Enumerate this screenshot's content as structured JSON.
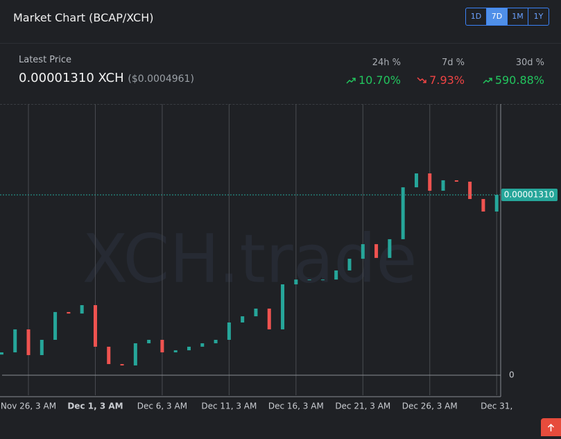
{
  "header": {
    "title": "Market Chart (BCAP/XCH)",
    "ranges": [
      "1D",
      "7D",
      "1M",
      "1Y"
    ],
    "active_range": "7D"
  },
  "price": {
    "label": "Latest Price",
    "value": "0.00001310 XCH",
    "usd": "($0.0004961)"
  },
  "changes": [
    {
      "label": "24h %",
      "value": "10.70%",
      "direction": "up"
    },
    {
      "label": "7d %",
      "value": "7.93%",
      "direction": "down"
    },
    {
      "label": "30d %",
      "value": "590.88%",
      "direction": "up"
    }
  ],
  "chart_data": {
    "type": "candlestick",
    "watermark": "XCH.trade",
    "up_color": "#26a69a",
    "down_color": "#ef5350",
    "x": [
      -2,
      -1,
      0,
      1,
      2,
      3,
      4,
      5,
      6,
      7,
      8,
      9,
      10,
      11,
      12,
      13,
      14,
      15,
      16,
      17,
      18,
      19,
      20,
      21,
      22,
      23,
      24,
      25,
      26,
      27,
      28,
      29,
      30,
      31,
      32,
      33,
      34,
      35
    ],
    "open": [
      1.5e-06,
      1.66e-06,
      3.33e-06,
      1.46e-06,
      2.57e-06,
      4.59e-06,
      4.48e-06,
      5.09e-06,
      2.07e-06,
      8.1e-07,
      7.1e-07,
      2.32e-06,
      2.57e-06,
      1.66e-06,
      1.81e-06,
      2.07e-06,
      2.32e-06,
      2.57e-06,
      3.83e-06,
      4.28e-06,
      4.84e-06,
      3.33e-06,
      6.6e-06,
      6.95e-06,
      6.95e-06,
      6.95e-06,
      7.61e-06,
      8.46e-06,
      9.52e-06,
      8.52e-06,
      9.88e-06,
      1.365e-05,
      1.466e-05,
      1.34e-05,
      1.416e-05,
      1.406e-05,
      1.28e-05,
      1.189e-05
    ],
    "close": [
      1.66e-06,
      3.33e-06,
      1.46e-06,
      2.57e-06,
      4.59e-06,
      4.48e-06,
      5.09e-06,
      2.07e-06,
      8.1e-07,
      7.1e-07,
      2.32e-06,
      2.57e-06,
      1.66e-06,
      1.81e-06,
      2.07e-06,
      2.32e-06,
      2.57e-06,
      3.83e-06,
      4.28e-06,
      4.84e-06,
      3.33e-06,
      6.6e-06,
      6.95e-06,
      6.95e-06,
      6.95e-06,
      7.61e-06,
      8.46e-06,
      9.52e-06,
      8.52e-06,
      9.88e-06,
      1.365e-05,
      1.466e-05,
      1.34e-05,
      1.416e-05,
      1.406e-05,
      1.28e-05,
      1.189e-05,
      1.31e-05
    ],
    "xlim": [
      -1.97,
      35.3
    ],
    "xticks": [
      {
        "value": 0,
        "label": "Nov 26, 3 AM"
      },
      {
        "value": 5,
        "label": "Dec 1, 3 AM"
      },
      {
        "value": 10,
        "label": "Dec 6, 3 AM"
      },
      {
        "value": 15,
        "label": "Dec 11, 3 AM"
      },
      {
        "value": 20,
        "label": "Dec 16, 3 AM"
      },
      {
        "value": 25,
        "label": "Dec 21, 3 AM"
      },
      {
        "value": 30,
        "label": "Dec 26, 3 AM"
      },
      {
        "value": 35,
        "label": "Dec 31,"
      }
    ],
    "bold_xtick": 1,
    "ylim": [
      -1.46e-06,
      1.97e-05
    ],
    "yticks": [
      0
    ],
    "last_price": {
      "value": 1.31e-05,
      "label": "0.00001310"
    }
  }
}
